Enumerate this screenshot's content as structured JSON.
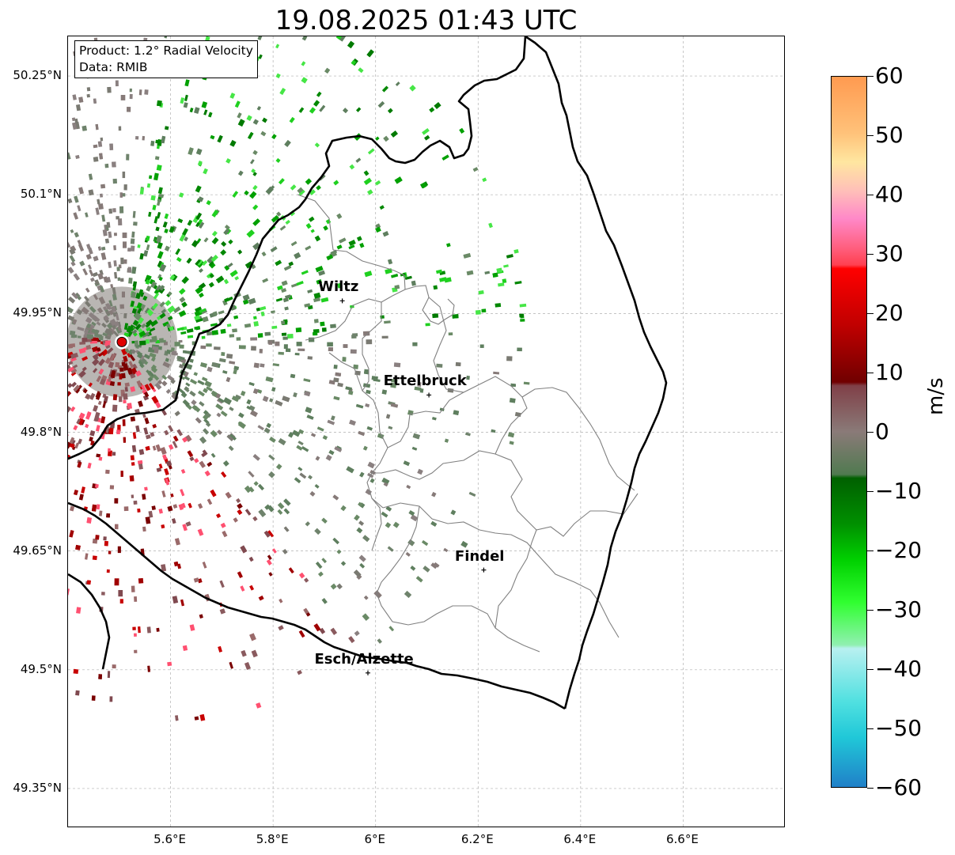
{
  "title": "19.08.2025 01:43 UTC",
  "info": {
    "product": "Product: 1.2° Radial Velocity",
    "data": "Data: RMIB"
  },
  "map": {
    "lon_range": [
      5.4,
      6.8
    ],
    "lat_range": [
      49.3,
      50.3
    ],
    "lat_ticks": [
      "50.25°N",
      "50.1°N",
      "49.95°N",
      "49.8°N",
      "49.65°N",
      "49.5°N",
      "49.35°N"
    ],
    "lon_ticks": [
      "5.6°E",
      "5.8°E",
      "6°E",
      "6.2°E",
      "6.4°E",
      "6.6°E"
    ],
    "radar_site": {
      "lon": 5.505,
      "lat": 49.914
    },
    "cities": [
      {
        "name": "Wiltz",
        "lon": 5.935,
        "lat": 49.966
      },
      {
        "name": "Ettelbruck",
        "lon": 6.104,
        "lat": 49.847
      },
      {
        "name": "Findel",
        "lon": 6.211,
        "lat": 49.626
      },
      {
        "name": "Esch/Alzette",
        "lon": 5.985,
        "lat": 49.496
      }
    ],
    "grid": true
  },
  "colorbar": {
    "unit": "m/s",
    "min": -60,
    "max": 60,
    "tick_labels": [
      "60",
      "50",
      "40",
      "30",
      "20",
      "10",
      "0",
      "−10",
      "−20",
      "−30",
      "−40",
      "−50",
      "−60"
    ],
    "colors": {
      "strong_outbound": "#ff9a50",
      "outbound": "#e00000",
      "zero": "#8a7a78",
      "inbound": "#00a000",
      "strong_inbound": "#2080c8"
    }
  }
}
